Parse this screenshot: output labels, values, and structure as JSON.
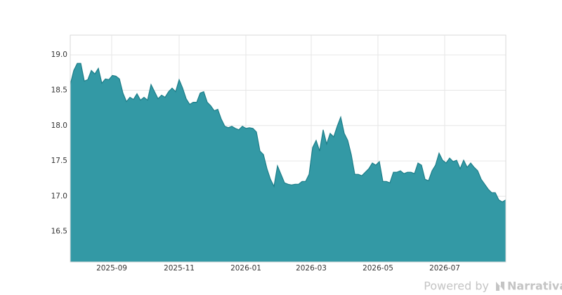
{
  "chart_data": {
    "type": "area",
    "values": [
      18.58,
      18.78,
      18.88,
      18.88,
      18.63,
      18.65,
      18.78,
      18.73,
      18.81,
      18.6,
      18.66,
      18.65,
      18.71,
      18.7,
      18.66,
      18.46,
      18.34,
      18.4,
      18.37,
      18.45,
      18.36,
      18.4,
      18.36,
      18.58,
      18.48,
      18.38,
      18.43,
      18.4,
      18.48,
      18.53,
      18.48,
      18.65,
      18.53,
      18.38,
      18.3,
      18.33,
      18.33,
      18.46,
      18.48,
      18.33,
      18.28,
      18.21,
      18.23,
      18.09,
      17.99,
      17.97,
      17.99,
      17.96,
      17.94,
      17.99,
      17.96,
      17.97,
      17.96,
      17.91,
      17.64,
      17.59,
      17.39,
      17.24,
      17.14,
      17.43,
      17.31,
      17.19,
      17.17,
      17.16,
      17.17,
      17.17,
      17.21,
      17.21,
      17.31,
      17.69,
      17.79,
      17.64,
      17.94,
      17.74,
      17.89,
      17.84,
      17.99,
      18.12,
      17.89,
      17.79,
      17.59,
      17.31,
      17.31,
      17.29,
      17.34,
      17.39,
      17.47,
      17.44,
      17.49,
      17.21,
      17.21,
      17.19,
      17.34,
      17.34,
      17.36,
      17.32,
      17.34,
      17.34,
      17.32,
      17.47,
      17.44,
      17.24,
      17.22,
      17.36,
      17.44,
      17.61,
      17.51,
      17.47,
      17.54,
      17.49,
      17.51,
      17.39,
      17.51,
      17.41,
      17.47,
      17.41,
      17.36,
      17.24,
      17.17,
      17.1,
      17.05,
      17.05,
      16.95,
      16.92,
      16.95
    ],
    "color": "#3399a5",
    "line_color": "#1d7e89",
    "xticks": [
      {
        "value": 11.8,
        "label": "2025-09"
      },
      {
        "value": 31,
        "label": "2025-11"
      },
      {
        "value": 50,
        "label": "2026-01"
      },
      {
        "value": 68.6,
        "label": "2026-03"
      },
      {
        "value": 87.6,
        "label": "2026-05"
      },
      {
        "value": 106.6,
        "label": "2026-07"
      }
    ],
    "ylim": [
      16.07,
      19.28
    ],
    "yticks": [
      16.5,
      {
        "value": 17,
        "label": "17.0"
      },
      17.5,
      {
        "value": 18,
        "label": "18.0"
      },
      18.5,
      {
        "value": 19,
        "label": "19.0"
      }
    ],
    "grid": true,
    "watermark": {
      "prefix": "Powered by",
      "brand": "Narrativa"
    }
  }
}
